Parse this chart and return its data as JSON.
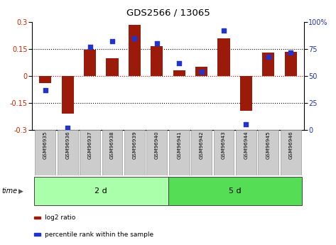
{
  "title": "GDS2566 / 13065",
  "samples": [
    "GSM96935",
    "GSM96936",
    "GSM96937",
    "GSM96938",
    "GSM96939",
    "GSM96940",
    "GSM96941",
    "GSM96942",
    "GSM96943",
    "GSM96944",
    "GSM96945",
    "GSM96946"
  ],
  "log2_ratio": [
    -0.04,
    -0.21,
    0.145,
    0.1,
    0.285,
    0.165,
    0.03,
    0.05,
    0.21,
    -0.195,
    0.13,
    0.135
  ],
  "percentile_rank": [
    37,
    2,
    77,
    82,
    85,
    80,
    62,
    54,
    92,
    5,
    68,
    72
  ],
  "group1_label": "2 d",
  "group2_label": "5 d",
  "group1_count": 6,
  "group2_count": 6,
  "bar_color": "#9B1A0A",
  "dot_color": "#2233CC",
  "ylim": [
    -0.3,
    0.3
  ],
  "yticks_left": [
    -0.3,
    -0.15,
    0.0,
    0.15,
    0.3
  ],
  "yticks_right": [
    0,
    25,
    50,
    75,
    100
  ],
  "hlines": [
    -0.15,
    0.0,
    0.15
  ],
  "group1_color": "#AAFFAA",
  "group2_color": "#55DD55",
  "bar_color_left": "#CC2200",
  "dot_color_right": "#2233AA",
  "legend_bar_label": "log2 ratio",
  "legend_dot_label": "percentile rank within the sample",
  "time_label": "time",
  "bar_width": 0.55,
  "sample_box_color": "#CCCCCC",
  "sample_box_edge": "#999999"
}
